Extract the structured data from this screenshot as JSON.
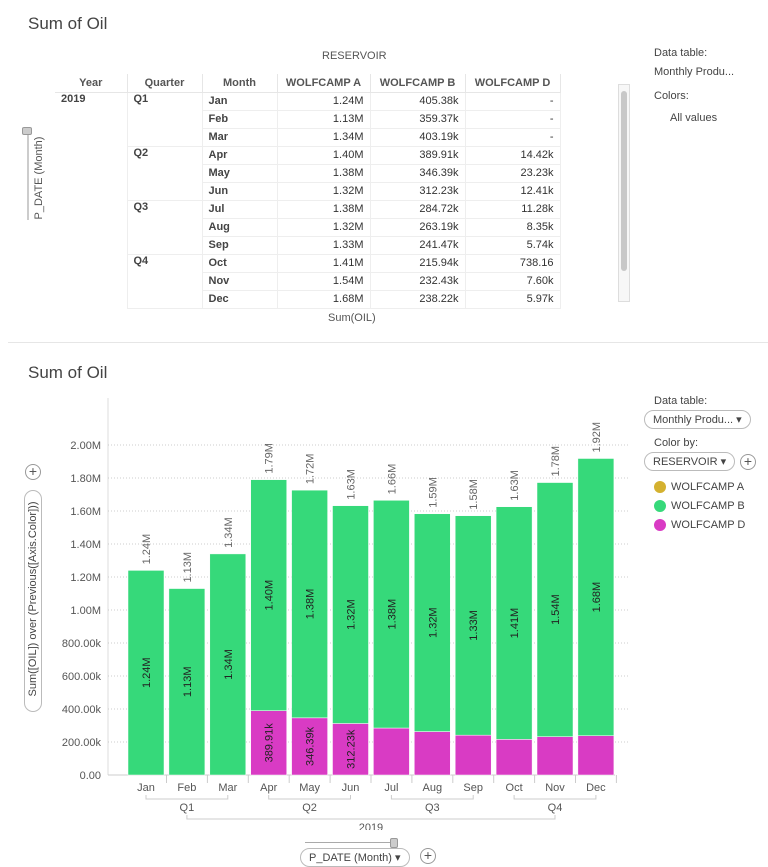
{
  "top": {
    "title": "Sum of Oil",
    "column_group": "RESERVOIR",
    "headers": [
      "Year",
      "Quarter",
      "Month",
      "WOLFCAMP A",
      "WOLFCAMP B",
      "WOLFCAMP D"
    ],
    "year": "2019",
    "quarters": [
      "Q1",
      "Q2",
      "Q3",
      "Q4"
    ],
    "rows": [
      [
        "Jan",
        "1.24M",
        "405.38k",
        "-"
      ],
      [
        "Feb",
        "1.13M",
        "359.37k",
        "-"
      ],
      [
        "Mar",
        "1.34M",
        "403.19k",
        "-"
      ],
      [
        "Apr",
        "1.40M",
        "389.91k",
        "14.42k"
      ],
      [
        "May",
        "1.38M",
        "346.39k",
        "23.23k"
      ],
      [
        "Jun",
        "1.32M",
        "312.23k",
        "12.41k"
      ],
      [
        "Jul",
        "1.38M",
        "284.72k",
        "11.28k"
      ],
      [
        "Aug",
        "1.32M",
        "263.19k",
        "8.35k"
      ],
      [
        "Sep",
        "1.33M",
        "241.47k",
        "5.74k"
      ],
      [
        "Oct",
        "1.41M",
        "215.94k",
        "738.16"
      ],
      [
        "Nov",
        "1.54M",
        "232.43k",
        "7.60k"
      ],
      [
        "Dec",
        "1.68M",
        "238.22k",
        "5.97k"
      ]
    ],
    "footer": "Sum(OIL)",
    "axis_label": "P_DATE (Month)",
    "side": {
      "data_table_label": "Data table:",
      "data_table_value": "Monthly Produ...",
      "colors_label": "Colors:",
      "colors_value": "All values"
    }
  },
  "bottom": {
    "title": "Sum of Oil",
    "side": {
      "data_table_label": "Data table:",
      "data_table_value": "Monthly Produ...",
      "color_by_label": "Color by:",
      "color_by_value": "RESERVOIR"
    },
    "legend": [
      {
        "name": "WOLFCAMP A",
        "color": "#d4b12f"
      },
      {
        "name": "WOLFCAMP B",
        "color": "#36d97a"
      },
      {
        "name": "WOLFCAMP D",
        "color": "#d93bc4"
      }
    ],
    "y_axis_selector": "Sum([OIL]) over (Previous([Axis.Color]))",
    "x_axis_selector": "P_DATE (Month)"
  },
  "chart_data": {
    "type": "bar",
    "stacked": true,
    "categories": [
      "Jan",
      "Feb",
      "Mar",
      "Apr",
      "May",
      "Jun",
      "Jul",
      "Aug",
      "Sep",
      "Oct",
      "Nov",
      "Dec"
    ],
    "quarters": [
      "Q1",
      "Q2",
      "Q3",
      "Q4"
    ],
    "year": "2019",
    "yticks": [
      "0.00",
      "200.00k",
      "400.00k",
      "600.00k",
      "800.00k",
      "1.00M",
      "1.20M",
      "1.40M",
      "1.60M",
      "1.80M",
      "2.00M"
    ],
    "ylim": [
      0,
      2000000
    ],
    "grid": true,
    "series": [
      {
        "color": "#d93bc4",
        "values": [
          0,
          0,
          0,
          389910,
          346390,
          312230,
          284720,
          263190,
          241470,
          215940,
          232430,
          238220
        ],
        "labels": [
          null,
          null,
          null,
          "389.91k",
          "346.39k",
          "312.23k",
          null,
          null,
          null,
          null,
          null,
          null
        ]
      },
      {
        "color": "#36d97a",
        "values": [
          1240000,
          1130000,
          1340000,
          1400000,
          1380000,
          1320000,
          1380000,
          1320000,
          1330000,
          1410000,
          1540000,
          1680000
        ],
        "labels": [
          "1.24M",
          "1.13M",
          "1.34M",
          "1.40M",
          "1.38M",
          "1.32M",
          "1.38M",
          "1.32M",
          "1.33M",
          "1.41M",
          "1.54M",
          "1.68M"
        ]
      }
    ],
    "totals": [
      "1.24M",
      "1.13M",
      "1.34M",
      "1.79M",
      "1.72M",
      "1.63M",
      "1.66M",
      "1.59M",
      "1.58M",
      "1.63M",
      "1.78M",
      "1.92M"
    ]
  }
}
